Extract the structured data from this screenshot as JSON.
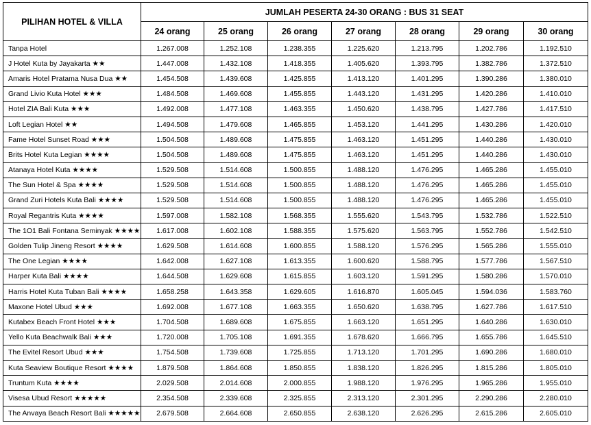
{
  "header": {
    "corner": "PILIHAN HOTEL & VILLA",
    "group": "JUMLAH PESERTA 24-30 ORANG : BUS 31 SEAT",
    "columns": [
      "24 orang",
      "25 orang",
      "26 orang",
      "27 orang",
      "28 orang",
      "29 orang",
      "30 orang"
    ]
  },
  "table": {
    "rows": [
      [
        "Tanpa Hotel",
        "1.267.008",
        "1.252.108",
        "1.238.355",
        "1.225.620",
        "1.213.795",
        "1.202.786",
        "1.192.510"
      ],
      [
        "J Hotel Kuta by Jayakarta ★★",
        "1.447.008",
        "1.432.108",
        "1.418.355",
        "1.405.620",
        "1.393.795",
        "1.382.786",
        "1.372.510"
      ],
      [
        "Amaris Hotel Pratama Nusa Dua ★★",
        "1.454.508",
        "1.439.608",
        "1.425.855",
        "1.413.120",
        "1.401.295",
        "1.390.286",
        "1.380.010"
      ],
      [
        "Grand Livio Kuta Hotel ★★★",
        "1.484.508",
        "1.469.608",
        "1.455.855",
        "1.443.120",
        "1.431.295",
        "1.420.286",
        "1.410.010"
      ],
      [
        "Hotel ZIA Bali Kuta ★★★",
        "1.492.008",
        "1.477.108",
        "1.463.355",
        "1.450.620",
        "1.438.795",
        "1.427.786",
        "1.417.510"
      ],
      [
        "Loft Legian Hotel ★★",
        "1.494.508",
        "1.479.608",
        "1.465.855",
        "1.453.120",
        "1.441.295",
        "1.430.286",
        "1.420.010"
      ],
      [
        "Fame Hotel Sunset Road ★★★",
        "1.504.508",
        "1.489.608",
        "1.475.855",
        "1.463.120",
        "1.451.295",
        "1.440.286",
        "1.430.010"
      ],
      [
        "Brits Hotel Kuta Legian ★★★★",
        "1.504.508",
        "1.489.608",
        "1.475.855",
        "1.463.120",
        "1.451.295",
        "1.440.286",
        "1.430.010"
      ],
      [
        "Atanaya Hotel Kuta ★★★★",
        "1.529.508",
        "1.514.608",
        "1.500.855",
        "1.488.120",
        "1.476.295",
        "1.465.286",
        "1.455.010"
      ],
      [
        "The Sun Hotel & Spa ★★★★",
        "1.529.508",
        "1.514.608",
        "1.500.855",
        "1.488.120",
        "1.476.295",
        "1.465.286",
        "1.455.010"
      ],
      [
        "Grand Zuri Hotels Kuta Bali ★★★★",
        "1.529.508",
        "1.514.608",
        "1.500.855",
        "1.488.120",
        "1.476.295",
        "1.465.286",
        "1.455.010"
      ],
      [
        "Royal Regantris Kuta ★★★★",
        "1.597.008",
        "1.582.108",
        "1.568.355",
        "1.555.620",
        "1.543.795",
        "1.532.786",
        "1.522.510"
      ],
      [
        "The 1O1 Bali Fontana Seminyak ★★★★",
        "1.617.008",
        "1.602.108",
        "1.588.355",
        "1.575.620",
        "1.563.795",
        "1.552.786",
        "1.542.510"
      ],
      [
        "Golden Tulip Jineng Resort ★★★★",
        "1.629.508",
        "1.614.608",
        "1.600.855",
        "1.588.120",
        "1.576.295",
        "1.565.286",
        "1.555.010"
      ],
      [
        "The One Legian ★★★★",
        "1.642.008",
        "1.627.108",
        "1.613.355",
        "1.600.620",
        "1.588.795",
        "1.577.786",
        "1.567.510"
      ],
      [
        "Harper Kuta Bali ★★★★",
        "1.644.508",
        "1.629.608",
        "1.615.855",
        "1.603.120",
        "1.591.295",
        "1.580.286",
        "1.570.010"
      ],
      [
        "Harris Hotel Kuta Tuban Bali ★★★★",
        "1.658.258",
        "1.643.358",
        "1.629.605",
        "1.616.870",
        "1.605.045",
        "1.594.036",
        "1.583.760"
      ],
      [
        "Maxone Hotel Ubud ★★★",
        "1.692.008",
        "1.677.108",
        "1.663.355",
        "1.650.620",
        "1.638.795",
        "1.627.786",
        "1.617.510"
      ],
      [
        "Kutabex Beach Front Hotel ★★★",
        "1.704.508",
        "1.689.608",
        "1.675.855",
        "1.663.120",
        "1.651.295",
        "1.640.286",
        "1.630.010"
      ],
      [
        "Yello Kuta Beachwalk Bali ★★★",
        "1.720.008",
        "1.705.108",
        "1.691.355",
        "1.678.620",
        "1.666.795",
        "1.655.786",
        "1.645.510"
      ],
      [
        "The Evitel Resort Ubud ★★★",
        "1.754.508",
        "1.739.608",
        "1.725.855",
        "1.713.120",
        "1.701.295",
        "1.690.286",
        "1.680.010"
      ],
      [
        "Kuta Seaview Boutique Resort ★★★★",
        "1.879.508",
        "1.864.608",
        "1.850.855",
        "1.838.120",
        "1.826.295",
        "1.815.286",
        "1.805.010"
      ],
      [
        "Truntum Kuta ★★★★",
        "2.029.508",
        "2.014.608",
        "2.000.855",
        "1.988.120",
        "1.976.295",
        "1.965.286",
        "1.955.010"
      ],
      [
        "Visesa Ubud Resort ★★★★★",
        "2.354.508",
        "2.339.608",
        "2.325.855",
        "2.313.120",
        "2.301.295",
        "2.290.286",
        "2.280.010"
      ],
      [
        "The Anvaya Beach Resort Bali ★★★★★",
        "2.679.508",
        "2.664.608",
        "2.650.855",
        "2.638.120",
        "2.626.295",
        "2.615.286",
        "2.605.010"
      ]
    ]
  }
}
